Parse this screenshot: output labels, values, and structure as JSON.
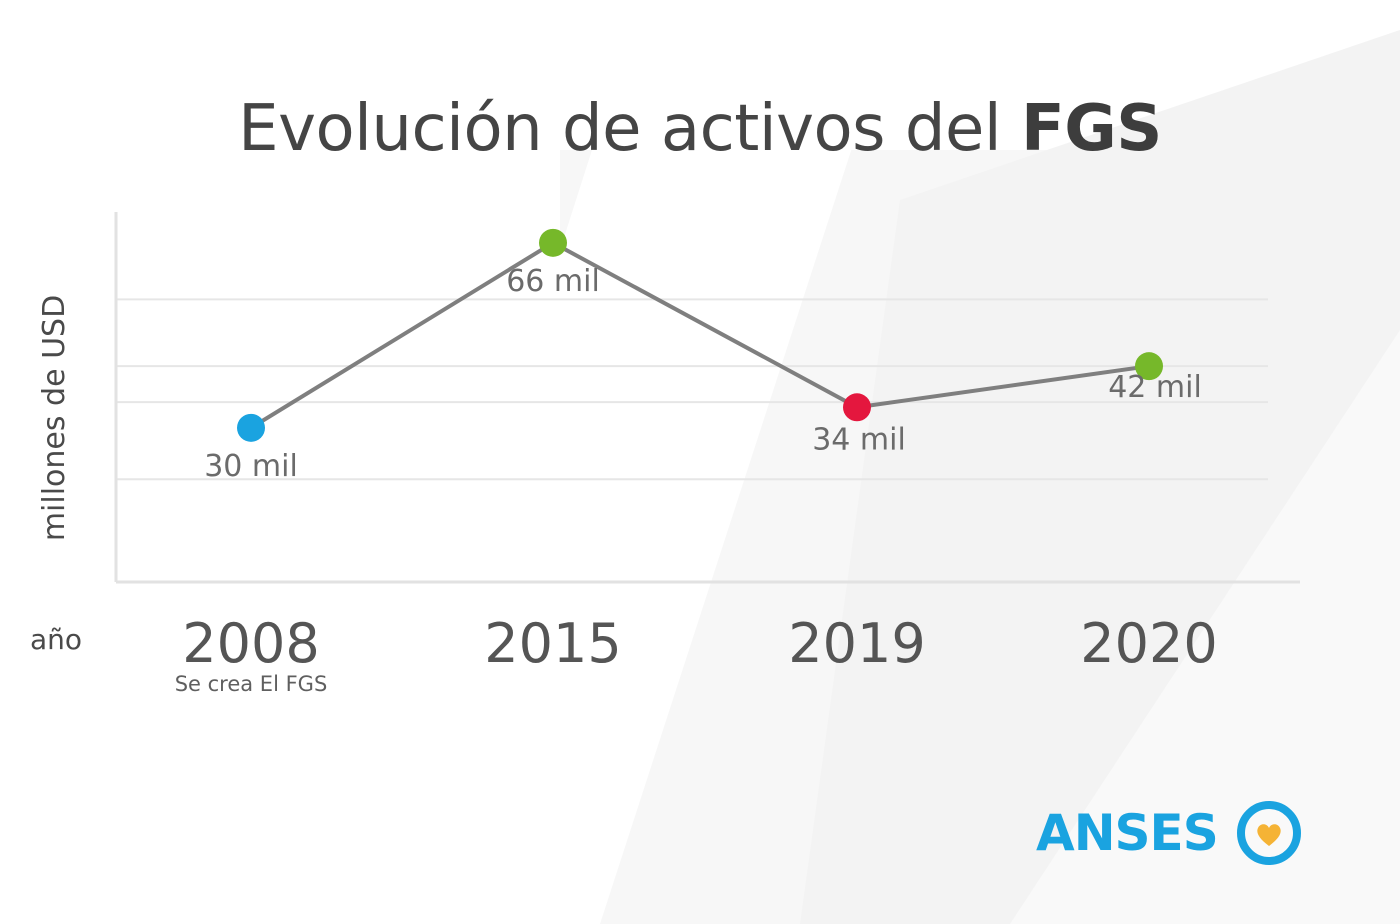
{
  "title": {
    "normal": "Evolución de activos del ",
    "bold": "FGS"
  },
  "brand": {
    "name": "ANSES",
    "logo_icon": "heart-circle-icon",
    "color": "#1aa3e0",
    "heart_color": "#f5b335"
  },
  "chart_data": {
    "type": "line",
    "ylabel": "millones de USD",
    "xlabel": "año",
    "categories": [
      "2008",
      "2015",
      "2019",
      "2020"
    ],
    "values": [
      30,
      66,
      34,
      42
    ],
    "data_labels": [
      "30 mil",
      "66 mil",
      "34 mil",
      "42 mil"
    ],
    "point_colors": [
      "#1aa3e0",
      "#76b82a",
      "#e4173e",
      "#76b82a"
    ],
    "annotations": [
      {
        "category": "2008",
        "text": "Se crea El FGS"
      }
    ],
    "ylim": [
      0,
      72
    ],
    "grid": true,
    "line_color": "#7f7f7f"
  }
}
